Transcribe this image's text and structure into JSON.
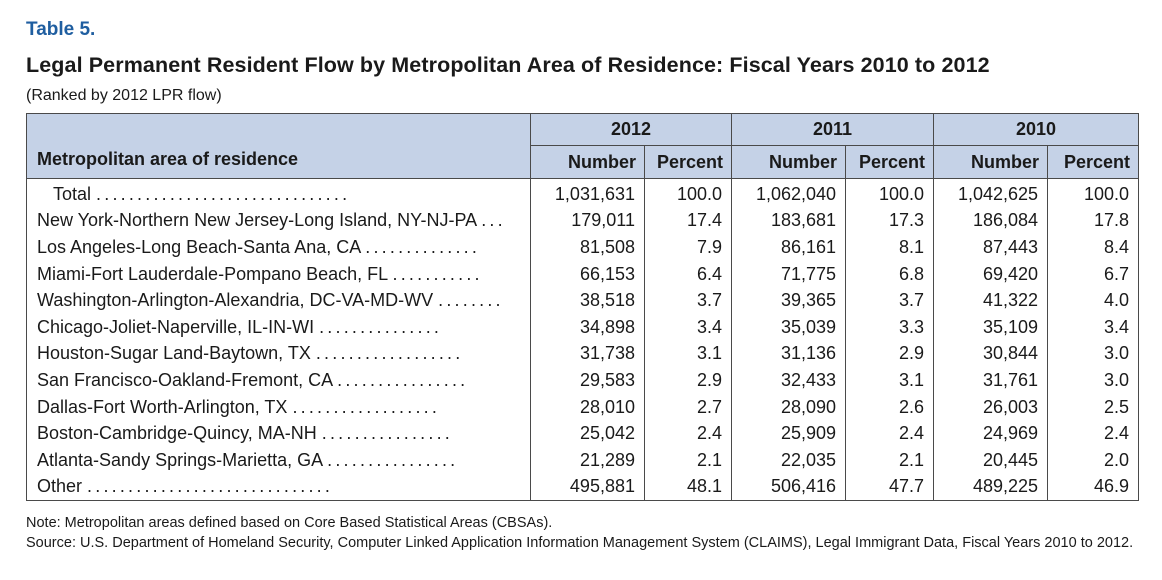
{
  "table_label": "Table 5.",
  "title": "Legal Permanent Resident Flow by Metropolitan Area of Residence: Fiscal Years 2010 to 2012",
  "subtitle": "(Ranked by 2012 LPR flow)",
  "header": {
    "metro_label": "Metropolitan area of residence",
    "years": [
      "2012",
      "2011",
      "2010"
    ],
    "number_label": "Number",
    "percent_label": "Percent"
  },
  "rows": [
    {
      "name": "Total",
      "dots": "...............................",
      "n2012": "1,031,631",
      "p2012": "100.0",
      "n2011": "1,062,040",
      "p2011": "100.0",
      "n2010": "1,042,625",
      "p2010": "100.0"
    },
    {
      "name": "New York-Northern New Jersey-Long Island, NY-NJ-PA",
      "dots": "...",
      "n2012": "179,011",
      "p2012": "17.4",
      "n2011": "183,681",
      "p2011": "17.3",
      "n2010": "186,084",
      "p2010": "17.8"
    },
    {
      "name": "Los Angeles-Long Beach-Santa Ana, CA",
      "dots": "..............",
      "n2012": "81,508",
      "p2012": "7.9",
      "n2011": "86,161",
      "p2011": "8.1",
      "n2010": "87,443",
      "p2010": "8.4"
    },
    {
      "name": "Miami-Fort Lauderdale-Pompano Beach, FL",
      "dots": "...........",
      "n2012": "66,153",
      "p2012": "6.4",
      "n2011": "71,775",
      "p2011": "6.8",
      "n2010": "69,420",
      "p2010": "6.7"
    },
    {
      "name": "Washington-Arlington-Alexandria, DC-VA-MD-WV",
      "dots": "........",
      "n2012": "38,518",
      "p2012": "3.7",
      "n2011": "39,365",
      "p2011": "3.7",
      "n2010": "41,322",
      "p2010": "4.0"
    },
    {
      "name": "Chicago-Joliet-Naperville, IL-IN-WI",
      "dots": "...............",
      "n2012": "34,898",
      "p2012": "3.4",
      "n2011": "35,039",
      "p2011": "3.3",
      "n2010": "35,109",
      "p2010": "3.4"
    },
    {
      "name": "Houston-Sugar Land-Baytown, TX",
      "dots": "..................",
      "n2012": "31,738",
      "p2012": "3.1",
      "n2011": "31,136",
      "p2011": "2.9",
      "n2010": "30,844",
      "p2010": "3.0"
    },
    {
      "name": "San Francisco-Oakland-Fremont, CA",
      "dots": "................",
      "n2012": "29,583",
      "p2012": "2.9",
      "n2011": "32,433",
      "p2011": "3.1",
      "n2010": "31,761",
      "p2010": "3.0"
    },
    {
      "name": "Dallas-Fort Worth-Arlington, TX",
      "dots": "..................",
      "n2012": "28,010",
      "p2012": "2.7",
      "n2011": "28,090",
      "p2011": "2.6",
      "n2010": "26,003",
      "p2010": "2.5"
    },
    {
      "name": "Boston-Cambridge-Quincy, MA-NH",
      "dots": "................",
      "n2012": "25,042",
      "p2012": "2.4",
      "n2011": "25,909",
      "p2011": "2.4",
      "n2010": "24,969",
      "p2010": "2.4"
    },
    {
      "name": "Atlanta-Sandy Springs-Marietta, GA",
      "dots": "................",
      "n2012": "21,289",
      "p2012": "2.1",
      "n2011": "22,035",
      "p2011": "2.1",
      "n2010": "20,445",
      "p2010": "2.0"
    },
    {
      "name": "Other",
      "dots": "..............................",
      "n2012": "495,881",
      "p2012": "48.1",
      "n2011": "506,416",
      "p2011": "47.7",
      "n2010": "489,225",
      "p2010": "46.9"
    }
  ],
  "notes": [
    "Note: Metropolitan areas defined based on Core Based Statistical Areas (CBSAs).",
    "Source: U.S. Department of Homeland Security, Computer Linked Application Information Management System (CLAIMS), Legal Immigrant Data, Fiscal Years 2010 to 2012."
  ]
}
